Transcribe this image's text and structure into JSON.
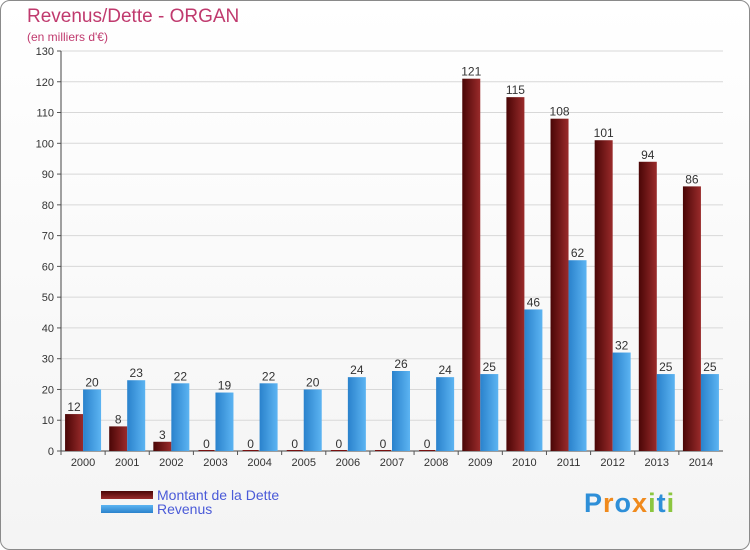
{
  "chart_data": {
    "type": "bar",
    "title": "Revenus/Dette - ORGAN",
    "subtitle": "(en milliers d'€)",
    "categories": [
      "2000",
      "2001",
      "2002",
      "2003",
      "2004",
      "2005",
      "2006",
      "2007",
      "2008",
      "2009",
      "2010",
      "2011",
      "2012",
      "2013",
      "2014"
    ],
    "series": [
      {
        "name": "Montant de la Dette",
        "color": "#7a1111",
        "values": [
          12,
          8,
          3,
          0,
          0,
          0,
          0,
          0,
          0,
          121,
          115,
          108,
          101,
          94,
          86
        ]
      },
      {
        "name": "Revenus",
        "color": "#3f9fe6",
        "values": [
          20,
          23,
          22,
          19,
          22,
          20,
          24,
          26,
          24,
          25,
          46,
          62,
          32,
          25,
          25
        ]
      }
    ],
    "ylim": [
      0,
      130
    ],
    "ytick_step": 10,
    "grid": true,
    "legend_position": "bottom-left"
  },
  "logo": {
    "letters": [
      {
        "char": "P",
        "color": "#2e8fd8"
      },
      {
        "char": "r",
        "color": "#f08a1c"
      },
      {
        "char": "o",
        "color": "#2e8fd8"
      },
      {
        "char": "x",
        "color": "#f08a1c"
      },
      {
        "char": "i",
        "color": "#8cc63f"
      },
      {
        "char": "t",
        "color": "#2e8fd8"
      },
      {
        "char": "i",
        "color": "#8cc63f"
      }
    ]
  }
}
